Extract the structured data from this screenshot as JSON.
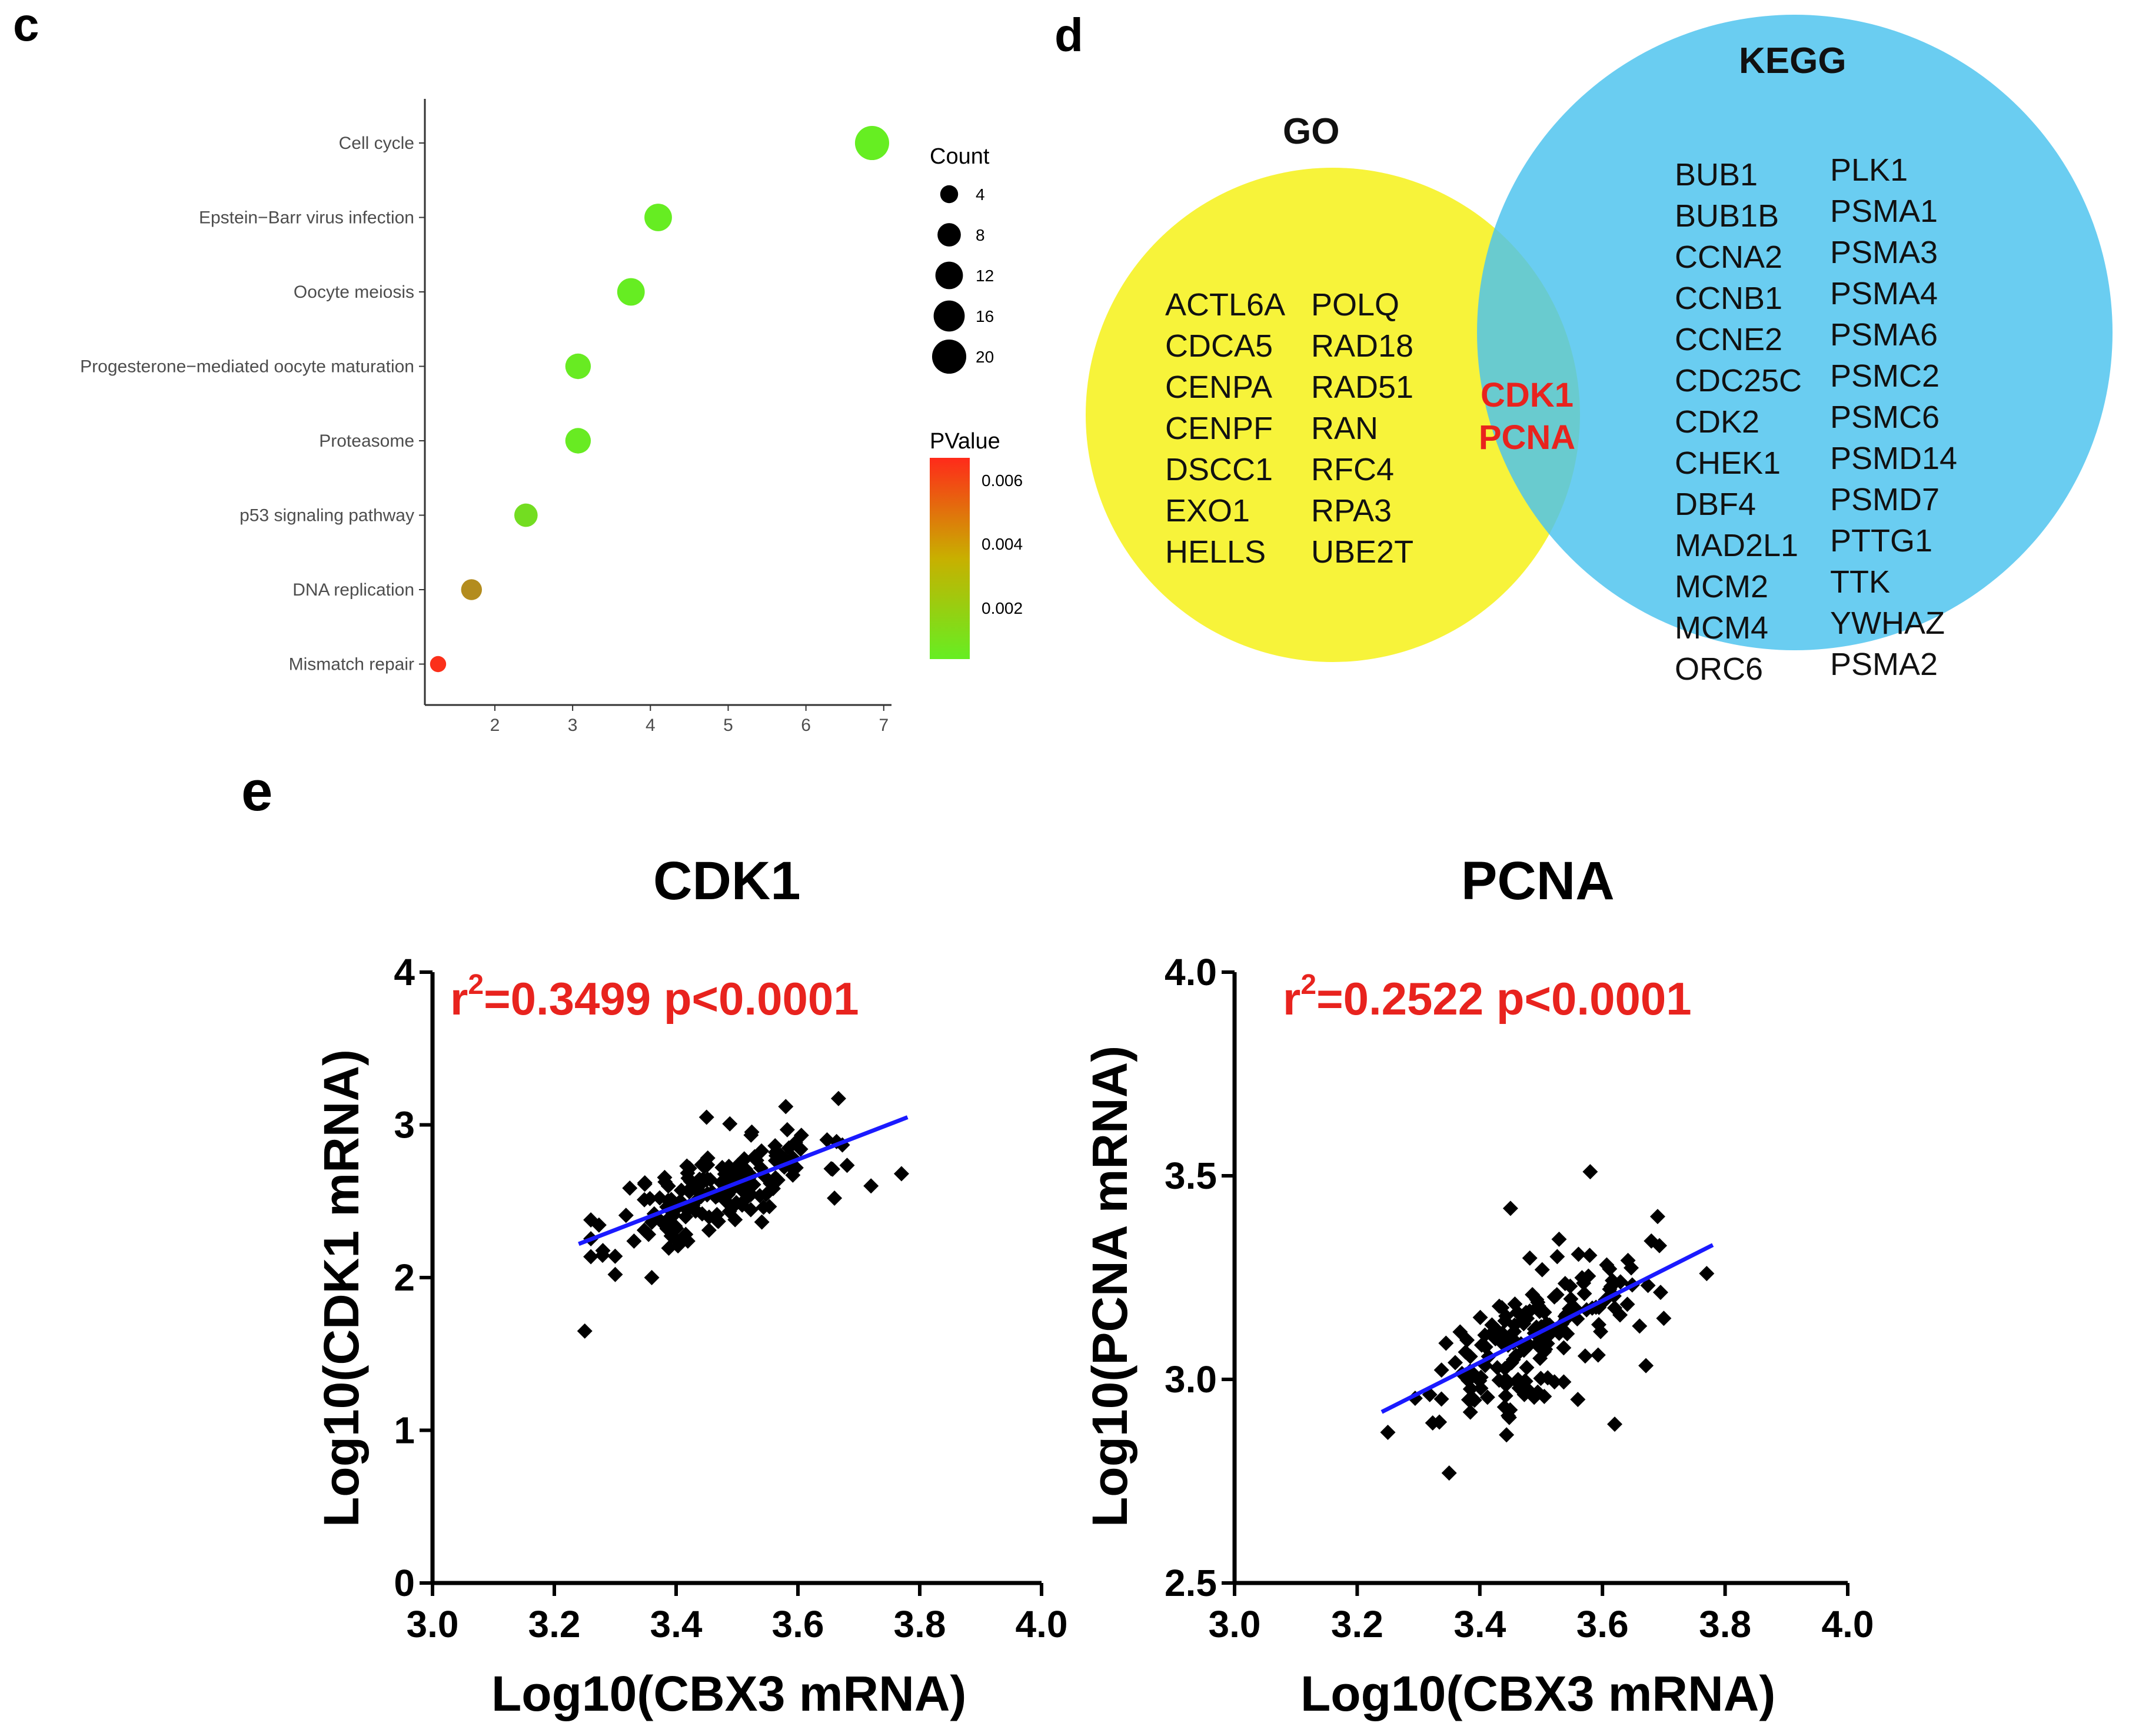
{
  "panels": {
    "c": "c",
    "d": "d",
    "e": "e"
  },
  "chart_data": [
    {
      "type": "scatter",
      "subtype": "dot-plot",
      "title": "",
      "categories": [
        "Cell cycle",
        "Epstein−Barr virus infection",
        "Oocyte meiosis",
        "Progesterone−mediated oocyte maturation",
        "Proteasome",
        "p53 signaling pathway",
        "DNA replication",
        "Mismatch repair"
      ],
      "x": [
        6.85,
        4.1,
        3.75,
        3.07,
        3.07,
        2.4,
        1.7,
        1.27
      ],
      "count": [
        20,
        12,
        12,
        10,
        10,
        8,
        6,
        3
      ],
      "pvalue": [
        1e-07,
        2e-05,
        2e-05,
        0.0001,
        0.0001,
        0.0006,
        0.0035,
        0.0068
      ],
      "xticks": [
        "2",
        "3",
        "4",
        "5",
        "6",
        "7"
      ],
      "xlim": [
        1.1,
        7.1
      ],
      "legend_count_title": "Count",
      "legend_count_values": [
        "4",
        "8",
        "12",
        "16",
        "20"
      ],
      "legend_pvalue_title": "PValue",
      "legend_pvalue_ticks": [
        "0.006",
        "0.004",
        "0.002"
      ],
      "legend_position": "right"
    },
    {
      "type": "scatter",
      "title": "CDK1",
      "stat_label_r": "r",
      "stat_label_sup": "2",
      "stat_label_rest": "=0.3499 p<0.0001",
      "xlabel": "Log10(CBX3 mRNA)",
      "ylabel": "Log10(CDK1 mRNA)",
      "xlim": [
        3.0,
        4.0
      ],
      "ylim": [
        0,
        4
      ],
      "xticks": [
        "3.0",
        "3.2",
        "3.4",
        "3.6",
        "3.8",
        "4.0"
      ],
      "yticks": [
        "0",
        "1",
        "2",
        "3",
        "4"
      ],
      "fit_line": {
        "x": [
          3.24,
          3.78
        ],
        "y": [
          2.22,
          3.05
        ]
      },
      "n_points": 170,
      "x_center": 3.47,
      "x_sd": 0.085,
      "slope": 1.55,
      "y_at_center": 2.57,
      "residual_sd": 0.15,
      "seed": 11,
      "extra_points": [
        [
          3.25,
          1.65
        ],
        [
          3.77,
          2.68
        ],
        [
          3.72,
          2.6
        ],
        [
          3.58,
          3.12
        ],
        [
          3.45,
          3.05
        ],
        [
          3.3,
          2.02
        ],
        [
          3.36,
          2.0
        ],
        [
          3.66,
          2.52
        ]
      ]
    },
    {
      "type": "scatter",
      "title": "PCNA",
      "stat_label_r": "r",
      "stat_label_sup": "2",
      "stat_label_rest": "=0.2522 p<0.0001",
      "xlabel": "Log10(CBX3 mRNA)",
      "ylabel": "Log10(PCNA mRNA)",
      "xlim": [
        3.0,
        4.0
      ],
      "ylim": [
        2.5,
        4.0
      ],
      "xticks": [
        "3.0",
        "3.2",
        "3.4",
        "3.6",
        "3.8",
        "4.0"
      ],
      "yticks": [
        "2.5",
        "3.0",
        "3.5",
        "4.0"
      ],
      "fit_line": {
        "x": [
          3.24,
          3.78
        ],
        "y": [
          2.92,
          3.33
        ]
      },
      "n_points": 170,
      "x_center": 3.47,
      "x_sd": 0.085,
      "slope": 0.76,
      "y_at_center": 3.09,
      "residual_sd": 0.08,
      "seed": 29,
      "extra_points": [
        [
          3.58,
          3.51
        ],
        [
          3.77,
          3.26
        ],
        [
          3.7,
          3.15
        ],
        [
          3.69,
          3.4
        ],
        [
          3.35,
          2.77
        ],
        [
          3.25,
          2.87
        ],
        [
          3.62,
          2.89
        ],
        [
          3.45,
          3.42
        ]
      ]
    }
  ],
  "venn": {
    "go_title": "GO",
    "kegg_title": "KEGG",
    "go_only_col1": [
      "ACTL6A",
      "CDCA5",
      "CENPA",
      "CENPF",
      "DSCC1",
      "EXO1",
      "HELLS"
    ],
    "go_only_col2": [
      "POLQ",
      "RAD18",
      "RAD51",
      "RAN",
      "RFC4",
      "RPA3",
      "UBE2T"
    ],
    "overlap": [
      "CDK1",
      "PCNA"
    ],
    "kegg_only_col1": [
      "BUB1",
      "BUB1B",
      "CCNA2",
      "CCNB1",
      "CCNE2",
      "CDC25C",
      "CDK2",
      "CHEK1",
      "DBF4",
      "MAD2L1",
      "MCM2",
      "MCM4",
      "ORC6"
    ],
    "kegg_only_col2": [
      "PLK1",
      "PSMA1",
      "PSMA3",
      "PSMA4",
      "PSMA6",
      "PSMC2",
      "PSMC6",
      "PSMD14",
      "PSMD7",
      "PTTG1",
      "TTK",
      "YWHAZ",
      "PSMA2"
    ],
    "colors": {
      "go": "#f7f33a",
      "kegg": "#4cc3ee",
      "overlap_text": "#e8231e"
    }
  },
  "colors": {
    "fit_line": "#1a1aff",
    "stat_text": "#e8231e",
    "points": "#000000",
    "p_high": "#ff2a1a",
    "p_low": "#66ee22"
  }
}
